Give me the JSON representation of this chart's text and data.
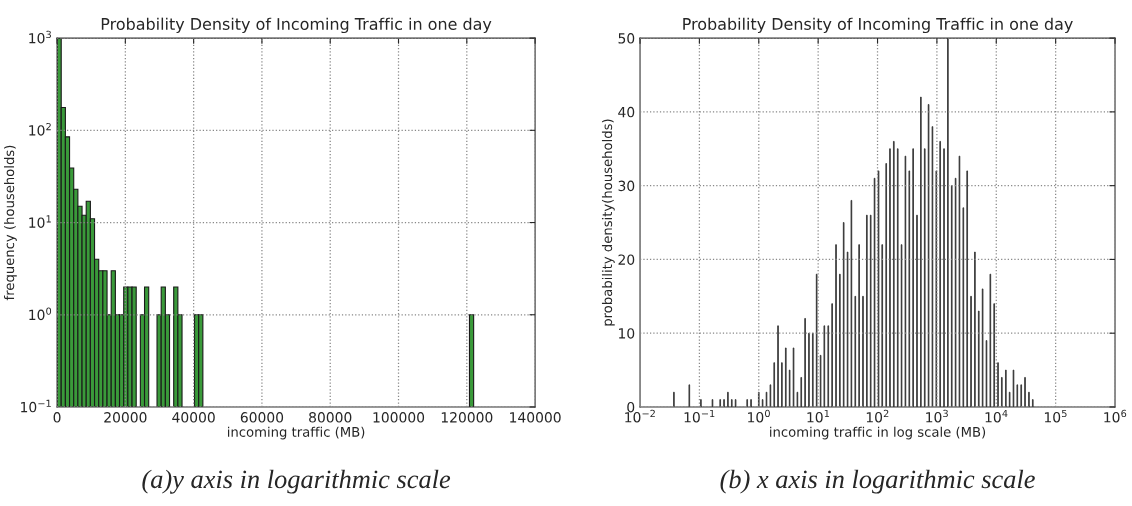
{
  "chart_data": [
    {
      "type": "histogram",
      "title": "Probability Density of Incoming Traffic in one day",
      "xlabel": "incoming traffic (MB)",
      "ylabel": "frequency (households)",
      "bins": [
        0,
        1220,
        2440,
        3660,
        4880,
        6100,
        7320,
        8540,
        9760,
        10980,
        12200,
        13420,
        14640,
        15860,
        17080,
        18300,
        19520,
        20740,
        21960,
        23180,
        24400,
        25620,
        26840,
        28060,
        29280,
        30500,
        31720,
        32940,
        34160,
        35380,
        36600,
        37820,
        39040,
        40260,
        41480,
        42700,
        43920,
        45140,
        46360,
        47580,
        48800,
        50020,
        51240,
        52460,
        53680,
        54900,
        56120,
        57340,
        58560,
        59780,
        61000,
        62220,
        63440,
        64660,
        65880,
        67100,
        68320,
        69540,
        70760,
        71980,
        73200,
        74420,
        75640,
        76860,
        78080,
        79300,
        80520,
        81740,
        82960,
        84180,
        85400,
        86620,
        87840,
        89060,
        90280,
        91500,
        92720,
        93940,
        95160,
        96380,
        97600,
        98820,
        100040,
        101260,
        102480,
        103700,
        104920,
        106140,
        107360,
        108580,
        109800,
        111020,
        112240,
        113460,
        114680,
        115900,
        117120,
        118340,
        119560,
        120780,
        122000
      ],
      "values": [
        1000,
        177,
        85,
        39,
        23,
        15,
        12,
        17,
        11,
        4,
        3,
        3,
        1,
        3,
        1,
        1,
        2,
        2,
        2,
        null,
        1,
        2,
        null,
        null,
        1,
        2,
        1,
        null,
        2,
        1,
        null,
        null,
        null,
        1,
        1,
        null,
        null,
        null,
        null,
        null,
        null,
        null,
        null,
        null,
        null,
        null,
        null,
        null,
        null,
        null,
        null,
        null,
        null,
        null,
        null,
        null,
        null,
        null,
        null,
        null,
        null,
        null,
        null,
        null,
        null,
        null,
        null,
        null,
        null,
        null,
        null,
        null,
        null,
        null,
        null,
        null,
        null,
        null,
        null,
        null,
        null,
        null,
        null,
        null,
        null,
        null,
        null,
        null,
        null,
        null,
        null,
        null,
        null,
        null,
        null,
        null,
        null,
        null,
        null,
        1
      ],
      "color": "#3a9a3a",
      "log": "y",
      "xlim": [
        0,
        140000
      ],
      "xticks": [
        0,
        20000,
        40000,
        60000,
        80000,
        100000,
        120000,
        140000
      ],
      "ylim": [
        0.1,
        1000
      ],
      "yticks": [
        {
          "value": 0.1,
          "label": "10$^{−1}$"
        },
        {
          "value": 1,
          "label": "10$^{0}$"
        },
        {
          "value": 10,
          "label": "10$^{1}$"
        },
        {
          "value": 100,
          "label": "10$^{2}$"
        },
        {
          "value": 1000,
          "label": "10$^{3}$"
        }
      ],
      "grid": true,
      "annotations": [
        "(a)y axis in logarithmic scale"
      ]
    },
    {
      "type": "bar",
      "title": "Probability Density of Incoming Traffic in one day",
      "xlabel": "incoming traffic in log scale (MB)",
      "ylabel": "probability density(households)",
      "x": [
        0.0372,
        0.0676,
        0.106,
        0.166,
        0.224,
        0.26,
        0.302,
        0.351,
        0.407,
        0.638,
        0.741,
        1,
        1.16,
        1.35,
        1.57,
        1.82,
        2.11,
        2.45,
        2.85,
        3.31,
        3.85,
        4.47,
        5.19,
        6.03,
        7.0,
        8.13,
        9.44,
        11.0,
        12.7,
        14.8,
        17.2,
        20.0,
        23.2,
        26.9,
        31.3,
        36.3,
        42.2,
        49.0,
        56.9,
        66.1,
        76.7,
        89.1,
        104,
        120,
        140,
        162,
        188,
        219,
        254,
        295,
        343,
        398,
        462,
        537,
        624,
        724,
        841,
        977,
        1135,
        1318,
        1531,
        1778,
        2065,
        2399,
        2786,
        3236,
        3758,
        4365,
        5070,
        5888,
        6839,
        7943,
        9226,
        10700,
        12400,
        14500,
        16800,
        19500,
        22600,
        26300,
        30500,
        35500,
        41200
      ],
      "values": [
        2,
        3,
        1,
        1,
        1,
        1,
        2,
        1,
        1,
        1,
        1,
        2,
        1,
        2,
        3,
        6,
        11,
        6,
        8,
        5,
        8,
        2,
        4,
        12,
        10,
        10,
        18,
        7,
        11,
        11,
        14,
        22,
        18,
        25,
        21,
        28,
        15,
        22,
        15,
        26,
        26,
        31,
        32,
        22,
        33,
        35,
        36,
        35,
        22,
        34,
        32,
        35,
        26,
        42,
        35,
        41,
        38,
        32,
        36,
        35,
        50,
        30,
        31,
        34,
        27,
        32,
        15,
        21,
        13,
        16,
        9,
        18,
        14,
        6,
        4,
        5,
        2,
        5,
        3,
        3,
        4,
        2,
        1
      ],
      "color": "#333333",
      "log": "x",
      "xlim": [
        0.01,
        1000000
      ],
      "xticks": [
        {
          "value": 0.01,
          "label": "10$^{−2}$"
        },
        {
          "value": 0.1,
          "label": "10$^{−1}$"
        },
        {
          "value": 1,
          "label": "10$^{0}$"
        },
        {
          "value": 10,
          "label": "10$^{1}$"
        },
        {
          "value": 100,
          "label": "10$^{2}$"
        },
        {
          "value": 1000,
          "label": "10$^{3}$"
        },
        {
          "value": 10000,
          "label": "10$^{4}$"
        },
        {
          "value": 100000,
          "label": "10$^{5}$"
        },
        {
          "value": 1000000,
          "label": "10$^{6}$"
        }
      ],
      "ylim": [
        0,
        50
      ],
      "yticks": [
        0,
        10,
        20,
        30,
        40,
        50
      ],
      "grid": true,
      "annotations": [
        "(b) x axis in logarithmic scale"
      ]
    }
  ]
}
